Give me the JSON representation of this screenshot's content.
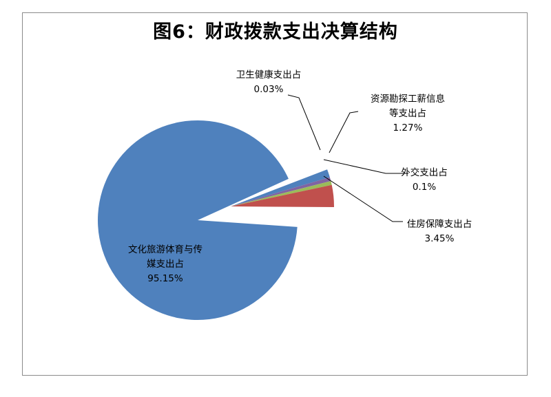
{
  "chart_data": {
    "type": "pie",
    "title": "图6：财政拨款支出决算结构",
    "slices": [
      {
        "label_lines": [
          "文化旅游体育与传",
          "媒支出占"
        ],
        "value": 95.15,
        "value_text": "95.15%",
        "color": "#4f81bd"
      },
      {
        "label_lines": [
          "卫生健康支出占"
        ],
        "value": 0.03,
        "value_text": "0.03%",
        "color": "#8064a2"
      },
      {
        "label_lines": [
          "资源勘探工薪信息",
          "等支出占"
        ],
        "value": 1.27,
        "value_text": "1.27%",
        "color": "#4f81bd"
      },
      {
        "label_lines": [
          "外交支出占"
        ],
        "value": 0.1,
        "value_text": "0.1%",
        "color": "#9bbb59"
      },
      {
        "label_lines": [
          "住房保障支出占"
        ],
        "value": 3.45,
        "value_text": "3.45%",
        "color": "#c0504d"
      }
    ],
    "legend": "none",
    "exploded": true
  }
}
